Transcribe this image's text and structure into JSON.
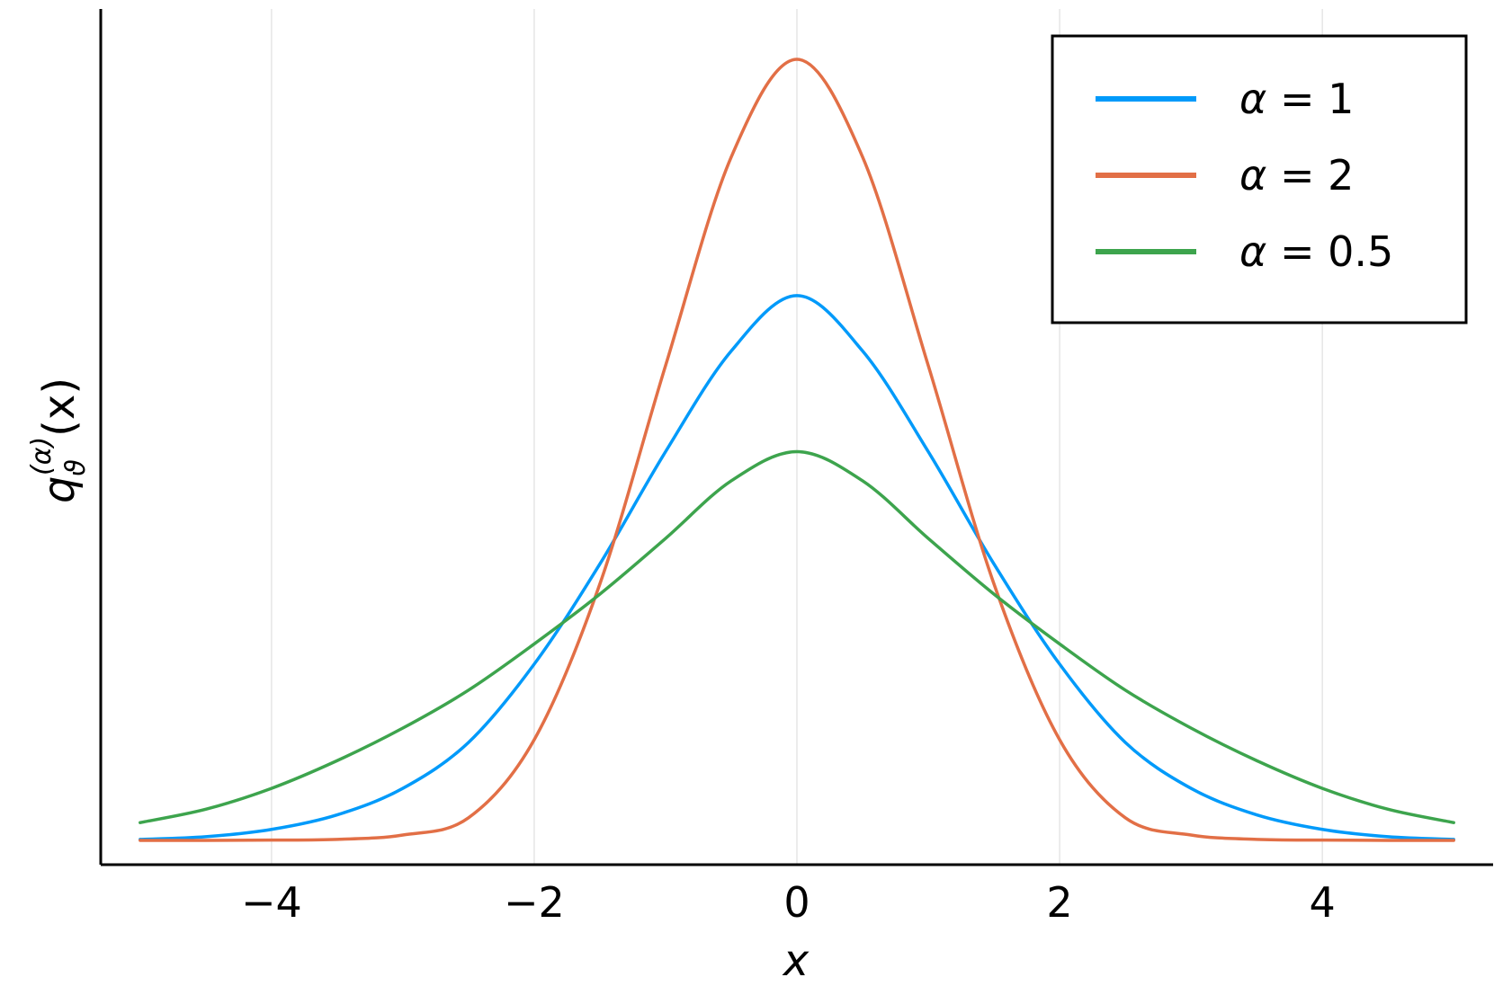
{
  "chart_data": {
    "type": "line",
    "xlabel": "x",
    "ylabel": {
      "base": "q",
      "subscript": "ϑ",
      "superscript": "(α)",
      "argument": "(x)"
    },
    "xlim": [
      -5.3,
      5.3
    ],
    "ylim": [
      -0.01,
      0.342
    ],
    "xticks": [
      {
        "value": -4,
        "label": "−4"
      },
      {
        "value": -2,
        "label": "−2"
      },
      {
        "value": 0,
        "label": "0"
      },
      {
        "value": 2,
        "label": "2"
      },
      {
        "value": 4,
        "label": "4"
      }
    ],
    "yticks_shown": false,
    "grid": {
      "x": true,
      "y": false
    },
    "legend_position": "top-right",
    "series": [
      {
        "name": {
          "symbol": "α",
          "text": " = 1"
        },
        "color": "#009afa",
        "x": [
          -5,
          -4.5,
          -4,
          -3.5,
          -3,
          -2.5,
          -2,
          -1.5,
          -1,
          -0.5,
          0,
          0.5,
          1,
          1.5,
          2,
          2.5,
          3,
          3.5,
          4,
          4.5,
          5
        ],
        "y": [
          0.0004,
          0.0015,
          0.0045,
          0.0105,
          0.0214,
          0.0403,
          0.0725,
          0.1137,
          0.1599,
          0.2013,
          0.2241,
          0.2013,
          0.1599,
          0.1137,
          0.0725,
          0.0403,
          0.0214,
          0.0105,
          0.0045,
          0.0015,
          0.0004
        ]
      },
      {
        "name": {
          "symbol": "α",
          "text": " = 2"
        },
        "color": "#e26f46",
        "x": [
          -5,
          -4.5,
          -4,
          -3.5,
          -3,
          -2.5,
          -2,
          -1.5,
          -1,
          -0.5,
          0,
          0.5,
          1,
          1.5,
          2,
          2.5,
          3,
          3.5,
          4,
          4.5,
          5
        ],
        "y": [
          0.0,
          0.0,
          0.0001,
          0.0004,
          0.0022,
          0.0093,
          0.0414,
          0.1055,
          0.1953,
          0.2811,
          0.3213,
          0.2811,
          0.1953,
          0.1055,
          0.0414,
          0.0093,
          0.0022,
          0.0004,
          0.0001,
          0.0,
          0.0
        ]
      },
      {
        "name": {
          "symbol": "α",
          "text": " = 0.5"
        },
        "color": "#3da44d",
        "x": [
          -5,
          -4.5,
          -4,
          -3.5,
          -3,
          -2.5,
          -2,
          -1.5,
          -1,
          -0.5,
          0,
          0.5,
          1,
          1.5,
          2,
          2.5,
          3,
          3.5,
          4,
          4.5,
          5
        ],
        "y": [
          0.0073,
          0.0128,
          0.0214,
          0.0328,
          0.0462,
          0.0618,
          0.0808,
          0.1013,
          0.1242,
          0.1479,
          0.1599,
          0.1479,
          0.1242,
          0.1013,
          0.0808,
          0.0618,
          0.0462,
          0.0328,
          0.0214,
          0.0128,
          0.0073
        ]
      }
    ]
  }
}
